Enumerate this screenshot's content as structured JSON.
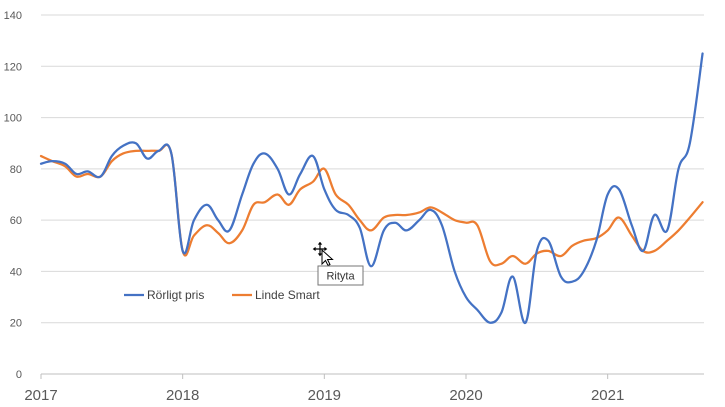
{
  "chart_data": {
    "type": "line",
    "title": "",
    "xlabel": "",
    "ylabel": "",
    "xlim": [
      2017.0,
      2021.68
    ],
    "ylim": [
      0,
      140
    ],
    "yticks": [
      0,
      20,
      40,
      60,
      80,
      100,
      120,
      140
    ],
    "xticks": [
      2017,
      2018,
      2019,
      2020,
      2021
    ],
    "grid": "horizontal",
    "legend_position": "lower-left",
    "series": [
      {
        "name": "Rörligt pris",
        "color": "#4472C4",
        "x": [
          2017.0,
          2017.08,
          2017.17,
          2017.25,
          2017.33,
          2017.42,
          2017.5,
          2017.58,
          2017.67,
          2017.75,
          2017.83,
          2017.92,
          2018.0,
          2018.08,
          2018.17,
          2018.25,
          2018.33,
          2018.42,
          2018.5,
          2018.58,
          2018.67,
          2018.75,
          2018.83,
          2018.92,
          2019.0,
          2019.08,
          2019.17,
          2019.25,
          2019.33,
          2019.42,
          2019.5,
          2019.58,
          2019.67,
          2019.75,
          2019.83,
          2019.92,
          2020.0,
          2020.08,
          2020.17,
          2020.25,
          2020.33,
          2020.42,
          2020.5,
          2020.58,
          2020.67,
          2020.75,
          2020.83,
          2020.92,
          2021.0,
          2021.08,
          2021.17,
          2021.25,
          2021.33,
          2021.42,
          2021.5,
          2021.58,
          2021.67
        ],
        "values": [
          82,
          83,
          82,
          78,
          79,
          77,
          85,
          89,
          90,
          84,
          87,
          86,
          48,
          60,
          66,
          60,
          56,
          70,
          82,
          86,
          80,
          70,
          78,
          85,
          72,
          64,
          62,
          57,
          42,
          56,
          59,
          56,
          60,
          64,
          58,
          40,
          30,
          25,
          20,
          24,
          38,
          20,
          48,
          52,
          38,
          36,
          40,
          52,
          70,
          72,
          58,
          48,
          62,
          56,
          80,
          90,
          125
        ]
      },
      {
        "name": "Linde Smart",
        "color": "#ED7D31",
        "x": [
          2017.0,
          2017.08,
          2017.17,
          2017.25,
          2017.33,
          2017.42,
          2017.5,
          2017.58,
          2017.67,
          2017.75,
          2017.83,
          2017.92,
          2018.0,
          2018.08,
          2018.17,
          2018.25,
          2018.33,
          2018.42,
          2018.5,
          2018.58,
          2018.67,
          2018.75,
          2018.83,
          2018.92,
          2019.0,
          2019.08,
          2019.17,
          2019.25,
          2019.33,
          2019.42,
          2019.5,
          2019.58,
          2019.67,
          2019.75,
          2019.83,
          2019.92,
          2020.0,
          2020.08,
          2020.17,
          2020.25,
          2020.33,
          2020.42,
          2020.5,
          2020.58,
          2020.67,
          2020.75,
          2020.83,
          2020.92,
          2021.0,
          2021.08,
          2021.17,
          2021.25,
          2021.33,
          2021.42,
          2021.5,
          2021.58,
          2021.67
        ],
        "values": [
          85,
          83,
          81,
          77,
          78,
          77,
          83,
          86,
          87,
          87,
          87,
          86,
          48,
          54,
          58,
          55,
          51,
          56,
          66,
          67,
          70,
          66,
          72,
          75,
          80,
          70,
          66,
          60,
          56,
          61,
          62,
          62,
          63,
          65,
          63,
          60,
          59,
          58,
          44,
          43,
          46,
          43,
          47,
          48,
          46,
          50,
          52,
          53,
          56,
          61,
          54,
          48,
          48,
          52,
          56,
          61,
          67
        ]
      }
    ]
  },
  "tooltip": {
    "label": "Rityta"
  }
}
